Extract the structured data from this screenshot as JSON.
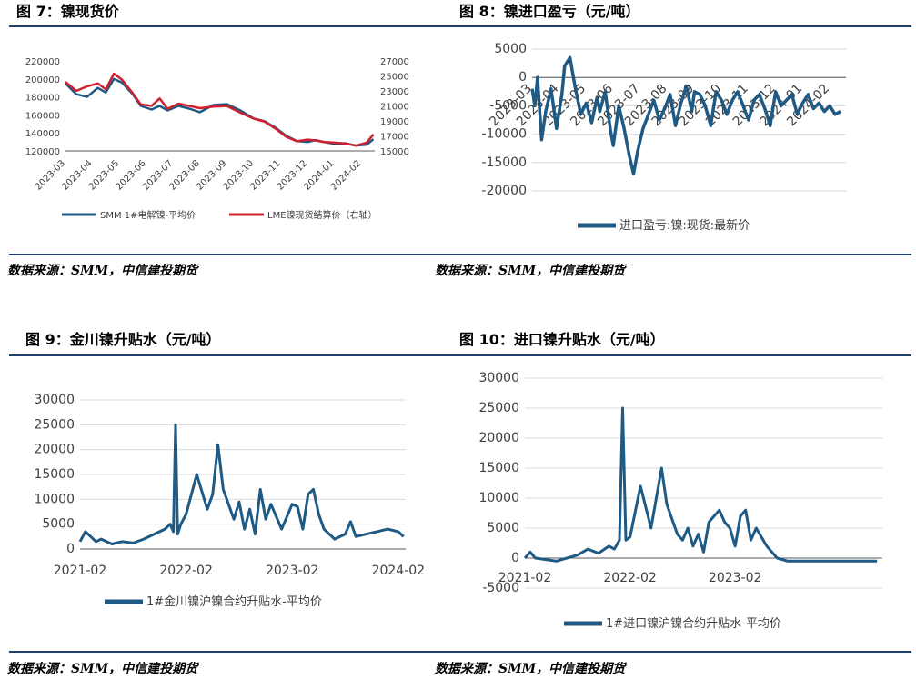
{
  "colors": {
    "navy": "#1f5a84",
    "red": "#d0202e",
    "rule": "#1f3e6b",
    "grid": "#d9d9d9",
    "axis": "#595959"
  },
  "sources": {
    "s1": "数据来源：SMM，中信建投期货",
    "s2": "数据来源：SMM，中信建投期货",
    "s3": "数据来源：SMM，中信建投期货",
    "s4": "数据来源：SMM，中信建投期货"
  },
  "chart_data": [
    {
      "id": "fig7",
      "type": "line",
      "title": "图 7：镍现货价",
      "x_tick_labels": [
        "2023-03",
        "2023-04",
        "2023-05",
        "2023-06",
        "2023-07",
        "2023-08",
        "2023-09",
        "2023-10",
        "2023-11",
        "2023-12",
        "2024-01",
        "2024-02"
      ],
      "ylim": [
        120000,
        220000
      ],
      "y_ticks": [
        "120000",
        "140000",
        "160000",
        "180000",
        "200000",
        "220000"
      ],
      "y2lim": [
        15000,
        27000
      ],
      "y2_ticks": [
        "15000",
        "17000",
        "19000",
        "21000",
        "23000",
        "25000",
        "27000"
      ],
      "legend_position": "bottom",
      "series": [
        {
          "name": "SMM 1#电解镍-平均价",
          "axis": "left",
          "color": "#1f5a84",
          "x": [
            0,
            0.4,
            0.8,
            1.2,
            1.5,
            1.8,
            2.1,
            2.5,
            2.8,
            3.2,
            3.5,
            3.8,
            4.2,
            4.6,
            5.0,
            5.5,
            6.0,
            6.5,
            7.0,
            7.4,
            7.8,
            8.2,
            8.6,
            9.0,
            9.3,
            9.6,
            10.0,
            10.4,
            10.8,
            11.2,
            11.45
          ],
          "y": [
            195000,
            183000,
            180000,
            190000,
            185000,
            200000,
            196000,
            183000,
            170000,
            166000,
            170000,
            165000,
            170000,
            167000,
            163000,
            171000,
            172000,
            165000,
            156000,
            153000,
            146000,
            137000,
            131000,
            130000,
            132000,
            130000,
            128000,
            128500,
            126000,
            127000,
            133000
          ]
        },
        {
          "name": "LME镍现货结算价（右轴）",
          "axis": "right",
          "color": "#d0202e",
          "x": [
            0,
            0.4,
            0.8,
            1.2,
            1.5,
            1.8,
            2.1,
            2.5,
            2.8,
            3.2,
            3.5,
            3.8,
            4.2,
            4.6,
            5.0,
            5.5,
            6.0,
            6.5,
            7.0,
            7.4,
            7.8,
            8.2,
            8.6,
            9.0,
            9.3,
            9.6,
            10.0,
            10.4,
            10.8,
            11.2,
            11.45
          ],
          "y": [
            24200,
            23000,
            23600,
            24000,
            23200,
            25300,
            24500,
            22700,
            21200,
            21000,
            22000,
            20600,
            21300,
            21000,
            20700,
            20900,
            21000,
            20100,
            19300,
            18900,
            18000,
            16900,
            16300,
            16500,
            16400,
            16200,
            16100,
            16000,
            15700,
            16100,
            17200
          ]
        }
      ]
    },
    {
      "id": "fig8",
      "type": "line",
      "title": "图 8：镍进口盈亏（元/吨）",
      "x_tick_labels": [
        "2023-03",
        "2023-04",
        "2023-05",
        "2023-06",
        "2023-07",
        "2023-08",
        "2023-09",
        "2023-10",
        "2023-11",
        "2023-12",
        "2024-01",
        "2024-02"
      ],
      "ylim": [
        -20000,
        5000
      ],
      "y_ticks": [
        "5000",
        "0",
        "-5000",
        "-10000",
        "-15000",
        "-20000"
      ],
      "legend_position": "bottom",
      "series": [
        {
          "name": "进口盈亏:镍:现货:最新价",
          "color": "#1f5a84",
          "x": [
            0,
            0.1,
            0.2,
            0.35,
            0.5,
            0.7,
            0.9,
            1.0,
            1.1,
            1.2,
            1.4,
            1.6,
            1.8,
            2.0,
            2.2,
            2.4,
            2.5,
            2.7,
            2.9,
            3.0,
            3.2,
            3.4,
            3.6,
            3.75,
            3.9,
            4.1,
            4.3,
            4.5,
            4.7,
            4.9,
            5.1,
            5.3,
            5.5,
            5.7,
            5.9,
            6.0,
            6.2,
            6.4,
            6.6,
            6.8,
            7.0,
            7.2,
            7.4,
            7.6,
            7.8,
            8.0,
            8.2,
            8.4,
            8.6,
            8.8,
            9.0,
            9.2,
            9.4,
            9.6,
            9.8,
            10.0,
            10.2,
            10.4,
            10.6,
            10.8,
            11.0,
            11.2,
            11.4
          ],
          "y": [
            -2000,
            -5000,
            0,
            -11000,
            -6000,
            -2000,
            -9000,
            -6000,
            -3000,
            2000,
            3500,
            -2000,
            -6500,
            -4500,
            -8000,
            -3500,
            -6000,
            -2500,
            -9500,
            -12000,
            -5000,
            -9000,
            -14000,
            -17000,
            -13000,
            -9000,
            -6500,
            -4000,
            -7500,
            -5500,
            -3000,
            -8500,
            -4500,
            -1500,
            -6000,
            -2500,
            -3000,
            -5000,
            -8500,
            -2500,
            -4000,
            -6500,
            -4000,
            -2500,
            -5000,
            -7500,
            -4000,
            -3000,
            -5500,
            -8500,
            -2500,
            -5000,
            -4000,
            -3000,
            -6500,
            -4500,
            -3000,
            -5500,
            -4500,
            -6000,
            -5000,
            -6500,
            -6000
          ]
        }
      ]
    },
    {
      "id": "fig9",
      "type": "line",
      "title": "图 9：金川镍升贴水（元/吨）",
      "x_tick_labels": [
        "2021-02",
        "2022-02",
        "2023-02",
        "2024-02"
      ],
      "ylim": [
        0,
        30000
      ],
      "y_ticks": [
        "30000",
        "25000",
        "20000",
        "15000",
        "10000",
        "5000",
        "0"
      ],
      "legend_position": "bottom",
      "series": [
        {
          "name": "1#金川镍沪镍合约升贴水-平均价",
          "color": "#1f5a84",
          "x": [
            0,
            0.05,
            0.1,
            0.15,
            0.2,
            0.3,
            0.4,
            0.5,
            0.6,
            0.7,
            0.8,
            0.85,
            0.88,
            0.9,
            0.92,
            0.95,
            1.0,
            1.1,
            1.2,
            1.25,
            1.3,
            1.35,
            1.45,
            1.5,
            1.55,
            1.6,
            1.65,
            1.7,
            1.75,
            1.8,
            1.9,
            2.0,
            2.05,
            2.1,
            2.15,
            2.2,
            2.25,
            2.3,
            2.4,
            2.5,
            2.55,
            2.6,
            2.7,
            2.8,
            2.9,
            3.0,
            3.05
          ],
          "y": [
            1500,
            3500,
            2500,
            1500,
            2000,
            1000,
            1500,
            1200,
            2000,
            3000,
            4000,
            5000,
            3500,
            25000,
            3000,
            5000,
            7000,
            15000,
            8000,
            11000,
            21000,
            12000,
            6000,
            9500,
            4000,
            8000,
            3000,
            12000,
            6000,
            9000,
            4000,
            9000,
            8500,
            4000,
            11000,
            12000,
            7000,
            4000,
            2000,
            3000,
            5500,
            2500,
            3000,
            3500,
            4000,
            3500,
            2500
          ]
        }
      ]
    },
    {
      "id": "fig10",
      "type": "line",
      "title": "图 10：进口镍升贴水（元/吨）",
      "x_tick_labels": [
        "2021-02",
        "2022-02",
        "2023-02"
      ],
      "ylim": [
        -5000,
        30000
      ],
      "y_ticks": [
        "30000",
        "25000",
        "20000",
        "15000",
        "10000",
        "5000",
        "0",
        "-5000"
      ],
      "legend_position": "bottom",
      "series": [
        {
          "name": "1#进口镍沪镍合约升贴水-平均价",
          "color": "#1f5a84",
          "x": [
            0,
            0.05,
            0.1,
            0.3,
            0.5,
            0.6,
            0.7,
            0.8,
            0.85,
            0.9,
            0.93,
            0.96,
            1.0,
            1.1,
            1.2,
            1.25,
            1.3,
            1.35,
            1.45,
            1.5,
            1.55,
            1.6,
            1.65,
            1.7,
            1.75,
            1.8,
            1.85,
            1.9,
            1.95,
            2.0,
            2.05,
            2.1,
            2.15,
            2.2,
            2.3,
            2.4,
            2.5,
            2.6,
            2.8,
            3.0,
            3.2,
            3.35
          ],
          "y": [
            0,
            1000,
            0,
            -500,
            500,
            1500,
            800,
            2000,
            1500,
            3000,
            25000,
            3000,
            3500,
            12000,
            5000,
            10000,
            15000,
            9000,
            4000,
            3000,
            5000,
            2000,
            4000,
            1000,
            6000,
            7000,
            8000,
            6000,
            5000,
            2000,
            7000,
            8000,
            3000,
            5000,
            2000,
            0,
            -500,
            -500,
            -500,
            -500,
            -500,
            -500
          ]
        }
      ]
    }
  ]
}
